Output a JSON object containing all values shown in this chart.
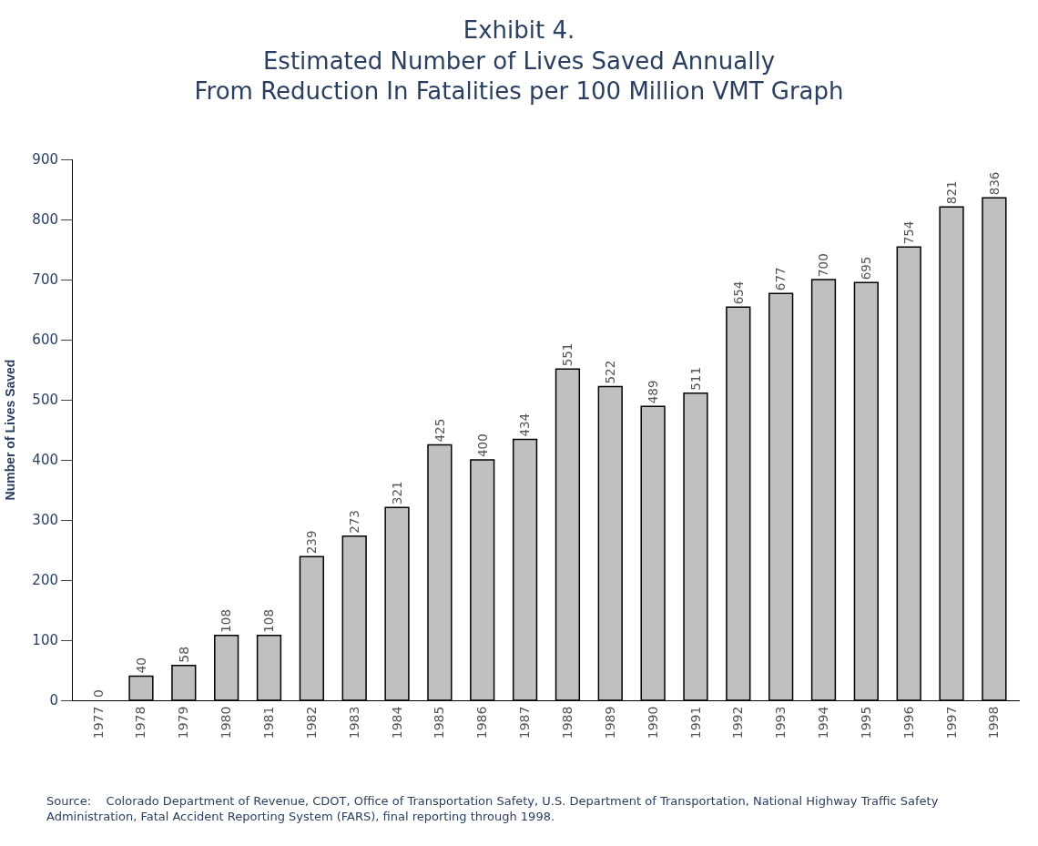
{
  "chart_data": {
    "type": "bar",
    "title": "Exhibit 4.\nEstimated Number of Lives Saved Annually\nFrom Reduction In Fatalities per 100 Million VMT Graph",
    "ylabel": "Number of Lives Saved",
    "categories": [
      "1977",
      "1978",
      "1979",
      "1980",
      "1981",
      "1982",
      "1983",
      "1984",
      "1985",
      "1986",
      "1987",
      "1988",
      "1989",
      "1990",
      "1991",
      "1992",
      "1993",
      "1994",
      "1995",
      "1996",
      "1997",
      "1998"
    ],
    "values": [
      0,
      40,
      58,
      108,
      108,
      239,
      273,
      321,
      425,
      400,
      434,
      551,
      522,
      489,
      511,
      654,
      677,
      700,
      695,
      754,
      821,
      836
    ],
    "color": "#c0c0c0",
    "ylim": [
      0,
      900
    ],
    "yticks": [
      0,
      100,
      200,
      300,
      400,
      500,
      600,
      700,
      800,
      900
    ],
    "data_labels": true,
    "annotations": [
      "Source:    Colorado Department of Revenue, CDOT, Office of Transportation Safety, U.S. Department of Transportation, National Highway Traffic Safety Administration, Fatal Accident Reporting System (FARS), final reporting through 1998."
    ]
  }
}
